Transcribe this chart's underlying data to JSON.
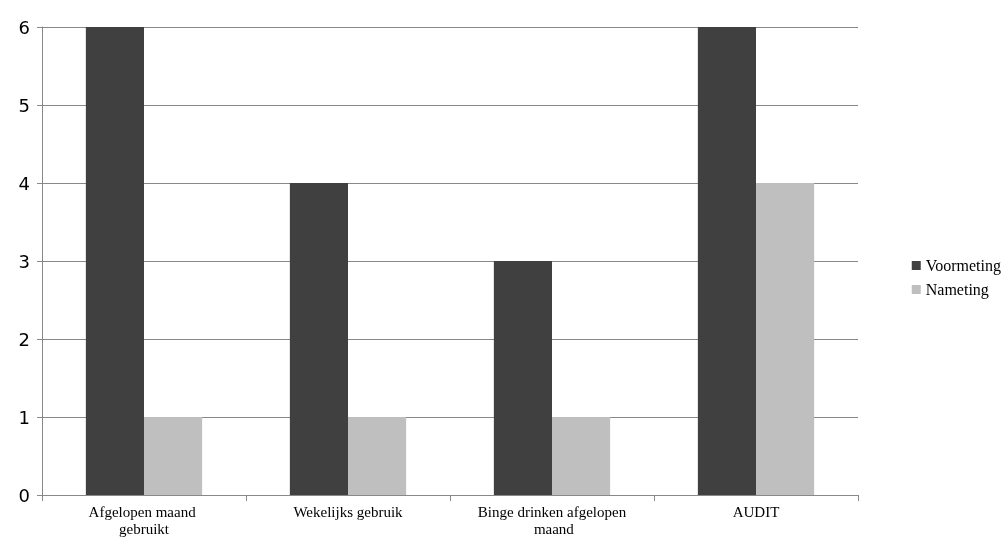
{
  "chart_data": {
    "type": "bar",
    "categories": [
      "Afgelopen maand gebruikt",
      "Wekelijks gebruik",
      "Binge drinken afgelopen maand",
      "AUDIT"
    ],
    "series": [
      {
        "name": "Voormeting",
        "color": "#404040",
        "values": [
          6,
          4,
          3,
          6
        ]
      },
      {
        "name": "Nameting",
        "color": "#bfbfbf",
        "values": [
          1,
          1,
          1,
          4
        ]
      }
    ],
    "ylim": [
      0,
      6
    ],
    "yticks": [
      0,
      1,
      2,
      3,
      4,
      5,
      6
    ],
    "grid": "y",
    "legend": "right"
  }
}
